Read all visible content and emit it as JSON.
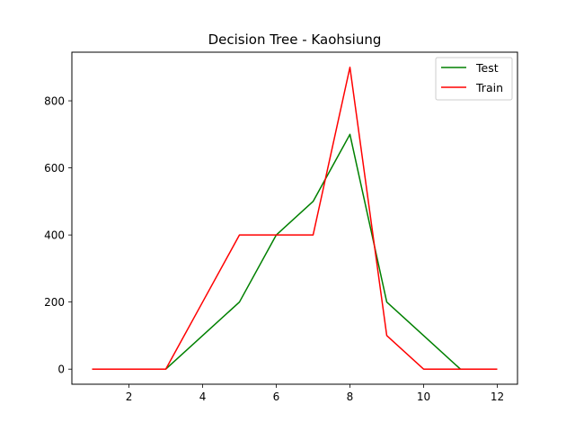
{
  "chart_data": {
    "type": "line",
    "title": "Decision Tree - Kaohsiung",
    "xlabel": "",
    "ylabel": "",
    "x": [
      1,
      2,
      3,
      4,
      5,
      6,
      7,
      8,
      9,
      10,
      11,
      12
    ],
    "xlim": [
      0.45,
      12.55
    ],
    "ylim": [
      -45,
      945
    ],
    "xticks": [
      2,
      4,
      6,
      8,
      10,
      12
    ],
    "yticks": [
      0,
      200,
      400,
      600,
      800
    ],
    "grid": false,
    "legend_position": "top-right",
    "series": [
      {
        "name": "Test",
        "color": "#008000",
        "values": [
          0,
          0,
          0,
          100,
          200,
          400,
          500,
          700,
          200,
          100,
          0,
          0
        ]
      },
      {
        "name": "Train",
        "color": "#ff0000",
        "values": [
          0,
          0,
          0,
          200,
          400,
          400,
          400,
          900,
          100,
          0,
          0,
          0
        ]
      }
    ]
  }
}
